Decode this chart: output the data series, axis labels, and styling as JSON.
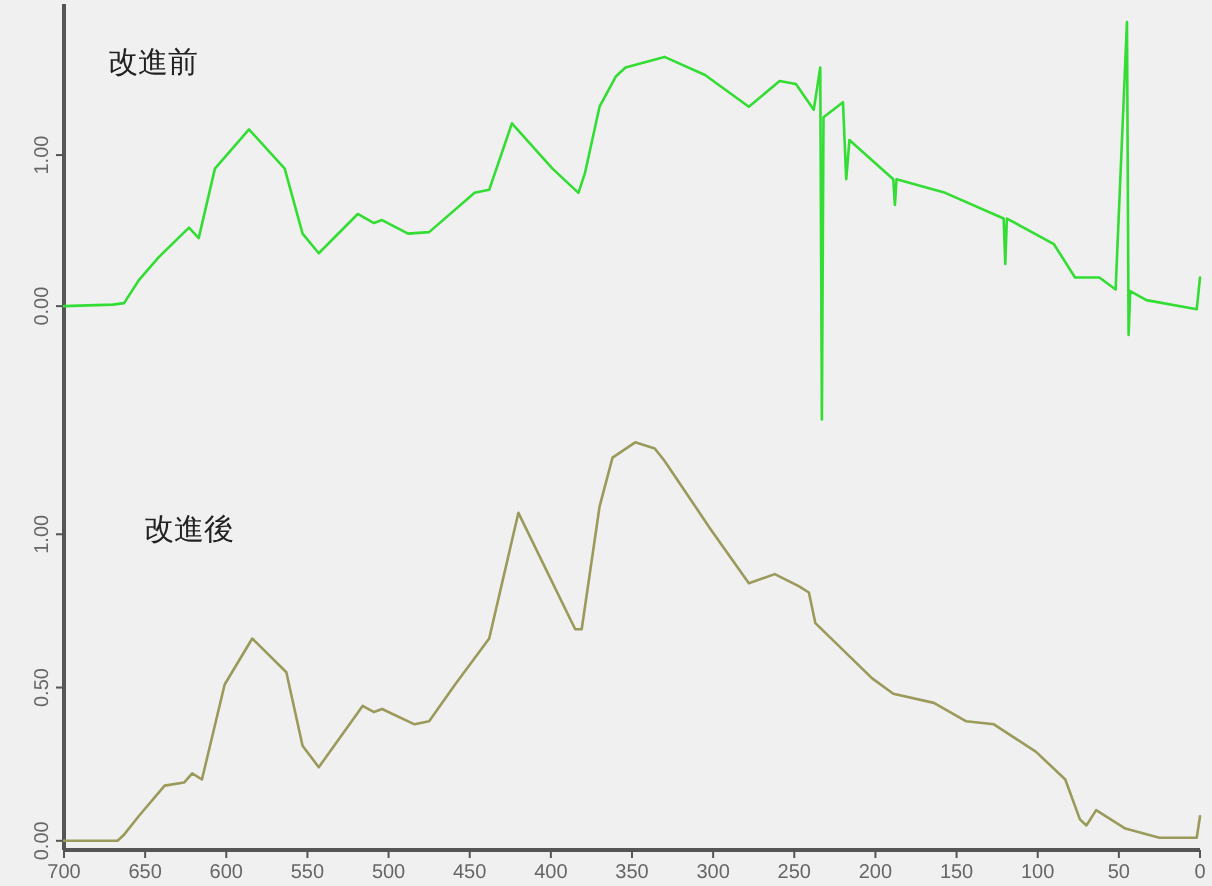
{
  "chart_data": [
    {
      "type": "line",
      "xlim": [
        700,
        0
      ],
      "ylim": [
        -0.8,
        2.0
      ],
      "yticks": [
        {
          "value": 0,
          "label": "0.00"
        },
        {
          "value": 1,
          "label": "1.00"
        }
      ],
      "tick_labels": "y",
      "grid": false,
      "annotations": [
        "改進前"
      ],
      "series": [
        {
          "color": "#33dd33",
          "x": [
            700,
            670,
            663,
            654,
            642,
            623,
            617,
            607,
            586,
            564,
            553,
            543,
            519,
            509,
            504,
            488,
            475,
            447,
            438,
            424,
            399,
            383,
            379,
            370,
            360,
            354,
            330,
            305,
            278,
            259,
            249,
            238,
            234,
            233,
            232,
            220,
            218,
            216,
            214,
            189,
            188,
            187,
            157,
            121,
            120,
            119,
            90,
            77,
            62,
            52,
            45,
            44,
            43,
            33,
            2,
            0
          ],
          "values": [
            0,
            0.01,
            0.02,
            0.17,
            0.32,
            0.52,
            0.45,
            0.91,
            1.17,
            0.91,
            0.48,
            0.35,
            0.61,
            0.55,
            0.57,
            0.48,
            0.49,
            0.75,
            0.77,
            1.21,
            0.91,
            0.75,
            0.88,
            1.32,
            1.52,
            1.58,
            1.65,
            1.53,
            1.32,
            1.49,
            1.47,
            1.3,
            1.58,
            -0.75,
            1.25,
            1.35,
            0.84,
            1.1,
            1.08,
            0.84,
            0.67,
            0.84,
            0.75,
            0.58,
            0.28,
            0.58,
            0.41,
            0.19,
            0.19,
            0.11,
            1.88,
            -0.19,
            0.1,
            0.04,
            -0.02,
            0.19
          ]
        }
      ]
    },
    {
      "type": "line",
      "xlim": [
        700,
        0
      ],
      "ylim": [
        -0.03,
        1.35
      ],
      "xticks": [
        700,
        650,
        600,
        550,
        500,
        450,
        400,
        350,
        300,
        250,
        200,
        150,
        100,
        50,
        0
      ],
      "yticks": [
        {
          "value": 0,
          "label": "0.00"
        },
        {
          "value": 0.5,
          "label": "0.50"
        },
        {
          "value": 1,
          "label": "1.00"
        }
      ],
      "grid": false,
      "annotations": [
        "改進後"
      ],
      "series": [
        {
          "color": "#9a9a5a",
          "x": [
            700,
            667,
            663,
            654,
            638,
            626,
            621,
            615,
            601,
            584,
            563,
            553,
            543,
            516,
            509,
            504,
            484,
            475,
            459,
            438,
            420,
            385,
            381,
            370,
            362,
            348,
            336,
            330,
            302,
            278,
            262,
            247,
            241,
            237,
            202,
            189,
            164,
            144,
            127,
            101,
            83,
            74,
            70,
            64,
            46,
            25,
            2,
            0
          ],
          "values": [
            0,
            0,
            0.02,
            0.08,
            0.18,
            0.19,
            0.22,
            0.2,
            0.51,
            0.66,
            0.55,
            0.31,
            0.24,
            0.44,
            0.42,
            0.43,
            0.38,
            0.39,
            0.51,
            0.66,
            1.07,
            0.69,
            0.69,
            1.09,
            1.25,
            1.3,
            1.28,
            1.24,
            1.02,
            0.84,
            0.87,
            0.83,
            0.81,
            0.71,
            0.53,
            0.48,
            0.45,
            0.39,
            0.38,
            0.29,
            0.2,
            0.07,
            0.05,
            0.1,
            0.04,
            0.01,
            0.01,
            0.08
          ]
        }
      ]
    }
  ]
}
